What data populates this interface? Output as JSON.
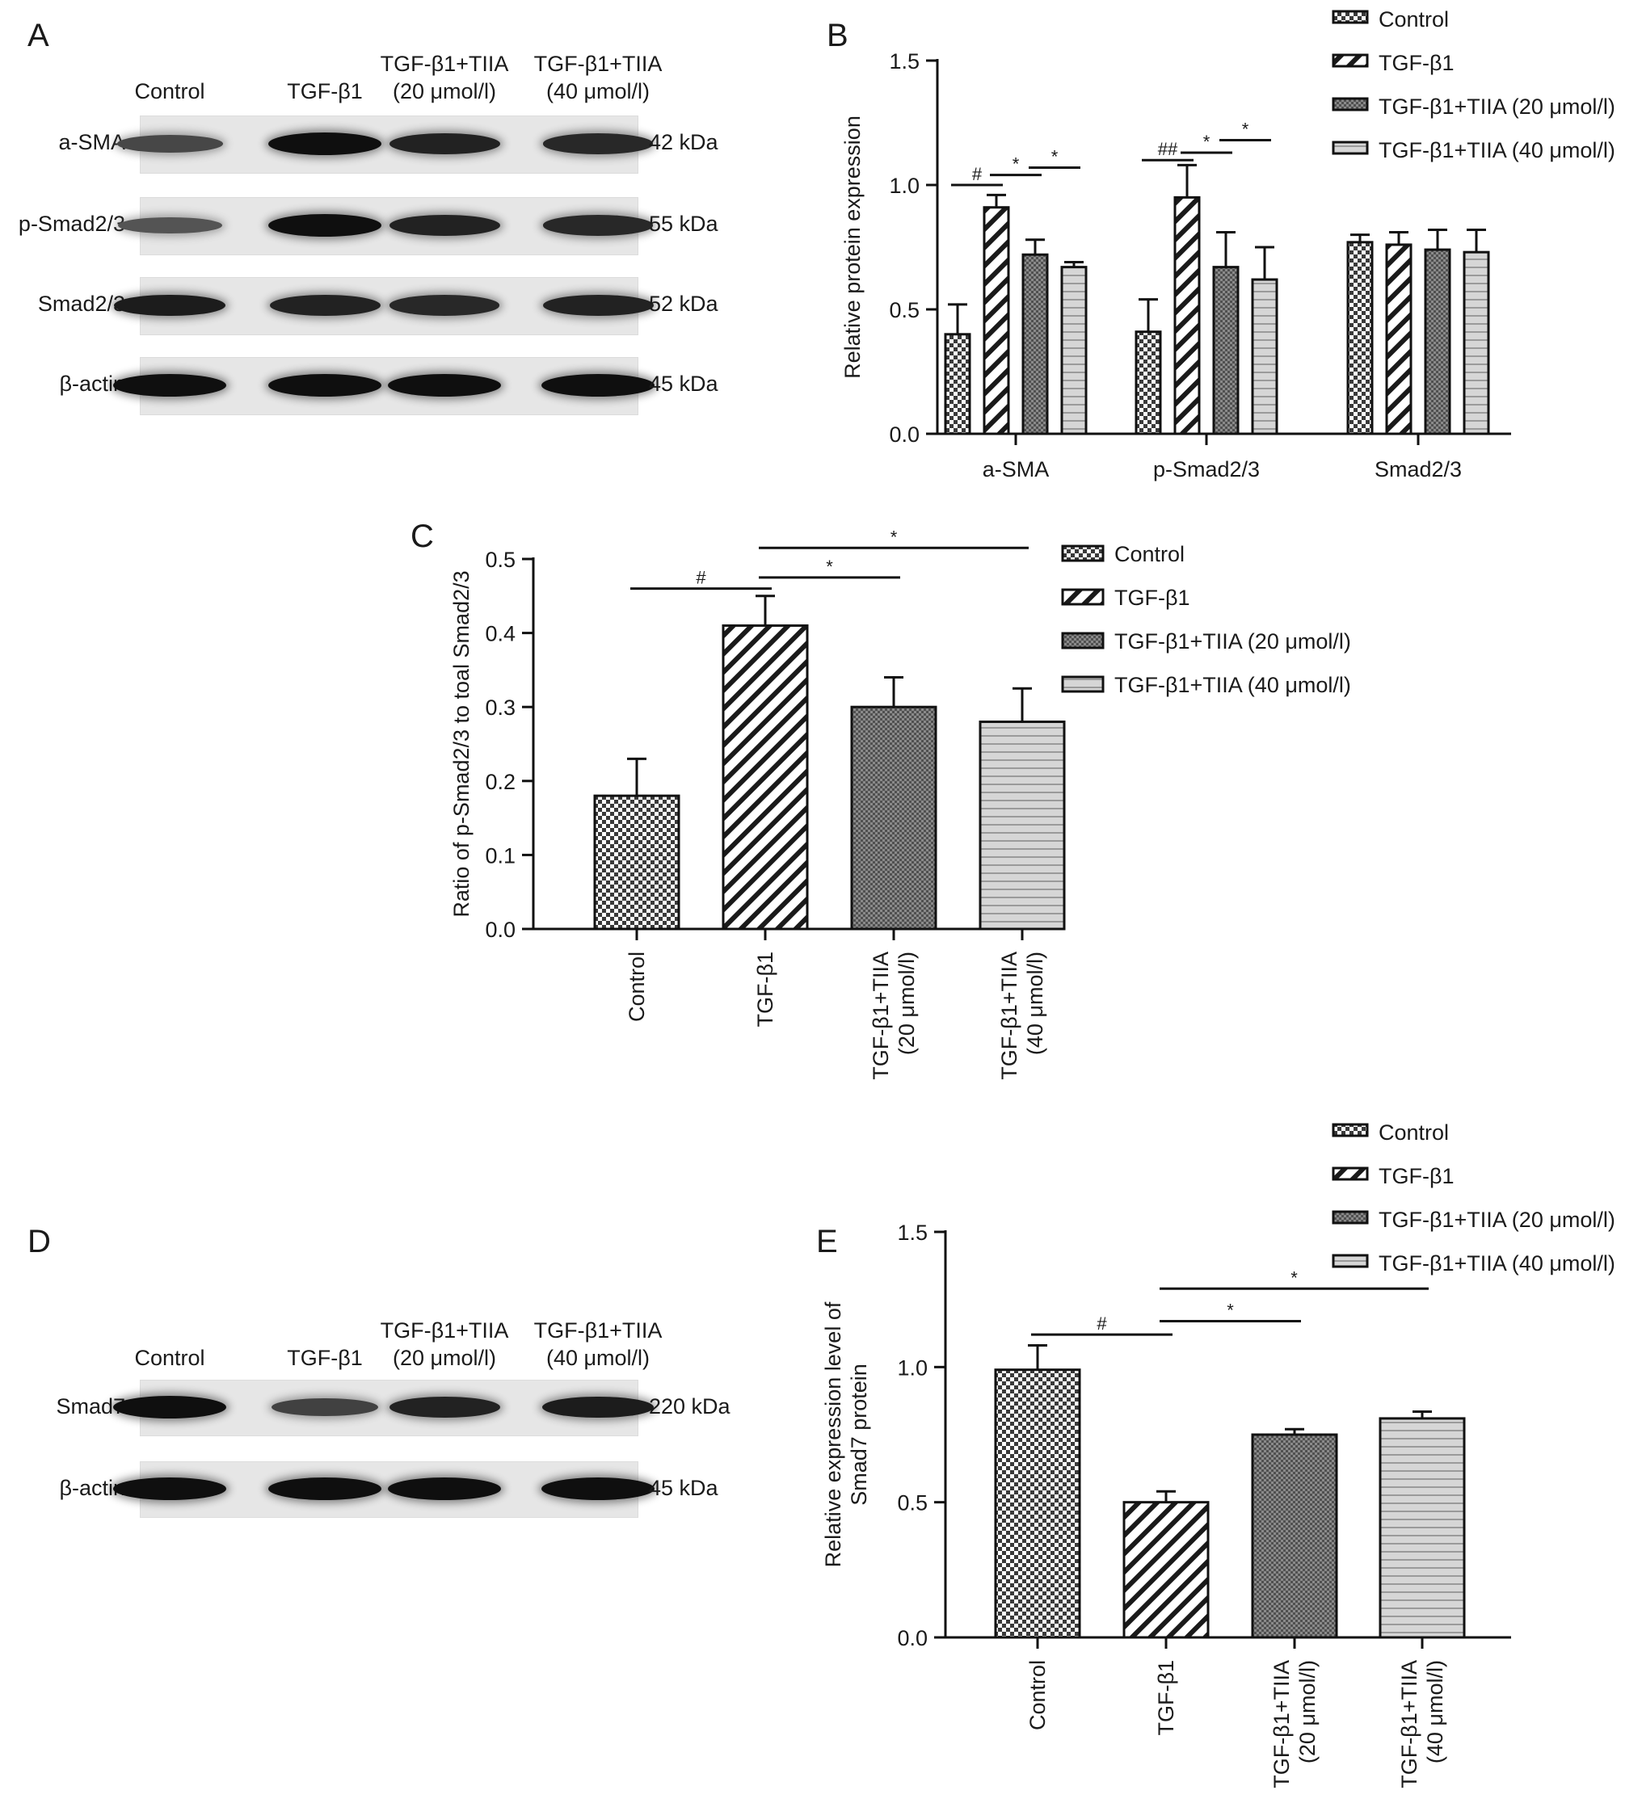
{
  "panels": {
    "a": "A",
    "b": "B",
    "c": "C",
    "d": "D",
    "e": "E"
  },
  "colors": {
    "control": "#3a3a3a",
    "tgf": "#1a1a1a",
    "tiia20": "#505050",
    "tiia40": "#9a9a9a"
  },
  "groups": [
    "Control",
    "TGF-β1",
    "TGF-β1+TIIA (20 μmol/l)",
    "TGF-β1+TIIA (40 μmol/l)"
  ],
  "blot_A": {
    "columns": [
      {
        "line1": "Control",
        "line2": ""
      },
      {
        "line1": "TGF-β1",
        "line2": ""
      },
      {
        "line1": "TGF-β1+TIIA",
        "line2": "(20 μmol/l)"
      },
      {
        "line1": "TGF-β1+TIIA",
        "line2": "(40 μmol/l)"
      }
    ],
    "rows": [
      {
        "label": "a-SMA",
        "kda": "42 kDa",
        "intensity": [
          0.55,
          1.0,
          0.85,
          0.8
        ]
      },
      {
        "label": "p-Smad2/3",
        "kda": "55 kDa",
        "intensity": [
          0.45,
          1.0,
          0.85,
          0.8
        ]
      },
      {
        "label": "Smad2/3",
        "kda": "52 kDa",
        "intensity": [
          0.9,
          0.85,
          0.8,
          0.85
        ]
      },
      {
        "label": "β-actin",
        "kda": "45 kDa",
        "intensity": [
          1.0,
          1.0,
          1.0,
          1.0
        ]
      }
    ]
  },
  "blot_D": {
    "columns": [
      {
        "line1": "Control",
        "line2": ""
      },
      {
        "line1": "TGF-β1",
        "line2": ""
      },
      {
        "line1": "TGF-β1+TIIA",
        "line2": "(20 μmol/l)"
      },
      {
        "line1": "TGF-β1+TIIA",
        "line2": "(40 μmol/l)"
      }
    ],
    "rows": [
      {
        "label": "Smad7",
        "kda": "220 kDa",
        "intensity": [
          1.0,
          0.6,
          0.85,
          0.9
        ]
      },
      {
        "label": "β-actin",
        "kda": "45 kDa",
        "intensity": [
          1.0,
          1.0,
          1.0,
          1.0
        ]
      }
    ]
  },
  "chart_data": [
    {
      "id": "B",
      "type": "bar",
      "categories": [
        "a-SMA",
        "p-Smad2/3",
        "Smad2/3"
      ],
      "series": [
        {
          "name": "Control",
          "values": [
            0.4,
            0.41,
            0.77
          ],
          "errors": [
            0.12,
            0.13,
            0.03
          ]
        },
        {
          "name": "TGF-β1",
          "values": [
            0.91,
            0.95,
            0.76
          ],
          "errors": [
            0.05,
            0.13,
            0.05
          ]
        },
        {
          "name": "TGF-β1+TIIA (20 μmol/l)",
          "values": [
            0.72,
            0.67,
            0.74
          ],
          "errors": [
            0.06,
            0.14,
            0.08
          ]
        },
        {
          "name": "TGF-β1+TIIA (40 μmol/l)",
          "values": [
            0.67,
            0.62,
            0.73
          ],
          "errors": [
            0.02,
            0.13,
            0.09
          ]
        }
      ],
      "ylabel": "Relative protein expression",
      "ylim": [
        0,
        1.5
      ],
      "yticks": [
        "0.0",
        "0.5",
        "1.0",
        "1.5"
      ],
      "legend": "top-right",
      "annotations": [
        {
          "category": 0,
          "from": 0,
          "to": 1,
          "y": 1.0,
          "text": "#"
        },
        {
          "category": 0,
          "from": 1,
          "to": 2,
          "y": 1.04,
          "text": "*"
        },
        {
          "category": 0,
          "from": 2,
          "to": 3,
          "y": 1.07,
          "text": "*"
        },
        {
          "category": 1,
          "from": 0,
          "to": 1,
          "y": 1.1,
          "text": "##"
        },
        {
          "category": 1,
          "from": 1,
          "to": 2,
          "y": 1.13,
          "text": "*"
        },
        {
          "category": 1,
          "from": 2,
          "to": 3,
          "y": 1.18,
          "text": "*"
        }
      ]
    },
    {
      "id": "C",
      "type": "bar",
      "categories": [
        "Control",
        "TGF-β1",
        "TGF-β1+TIIA|(20 μmol/l)",
        "TGF-β1+TIIA|(40 μmol/l)"
      ],
      "values": [
        0.18,
        0.41,
        0.3,
        0.28
      ],
      "errors": [
        0.05,
        0.04,
        0.04,
        0.045
      ],
      "ylabel": "Ratio of p-Smad2/3 to toal Smad2/3",
      "ylim": [
        0,
        0.5
      ],
      "yticks": [
        "0.0",
        "0.1",
        "0.2",
        "0.3",
        "0.4",
        "0.5"
      ],
      "legend": "right",
      "annotations": [
        {
          "from": 0,
          "to": 1,
          "y": 0.46,
          "text": "#"
        },
        {
          "from": 1,
          "to": 2,
          "y": 0.475,
          "text": "*"
        },
        {
          "from": 1,
          "to": 3,
          "y": 0.515,
          "text": "*"
        }
      ]
    },
    {
      "id": "E",
      "type": "bar",
      "categories": [
        "Control",
        "TGF-β1",
        "TGF-β1+TIIA|(20 μmol/l)",
        "TGF-β1+TIIA|(40 μmol/l)"
      ],
      "values": [
        0.99,
        0.5,
        0.75,
        0.81
      ],
      "errors": [
        0.09,
        0.04,
        0.02,
        0.025
      ],
      "ylabel": "Relative expression level of|Smad7 protein",
      "ylim": [
        0,
        1.5
      ],
      "yticks": [
        "0.0",
        "0.5",
        "1.0",
        "1.5"
      ],
      "legend": "top-right",
      "annotations": [
        {
          "from": 0,
          "to": 1,
          "y": 1.12,
          "text": "#"
        },
        {
          "from": 1,
          "to": 2,
          "y": 1.17,
          "text": "*"
        },
        {
          "from": 1,
          "to": 3,
          "y": 1.29,
          "text": "*"
        }
      ]
    }
  ]
}
